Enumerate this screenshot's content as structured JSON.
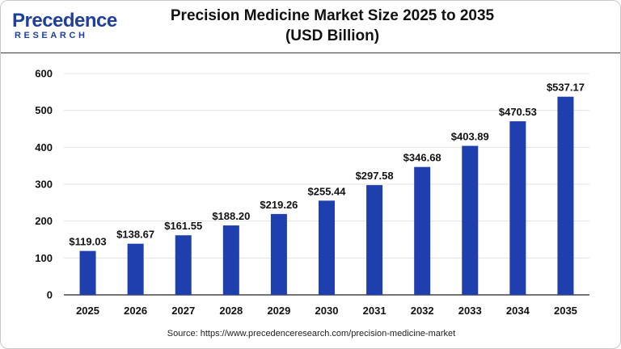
{
  "brand": {
    "name": "Precedence",
    "sub": "RESEARCH"
  },
  "header": {
    "title_line1": "Precision Medicine Market Size 2025 to 2035",
    "title_line2": "(USD Billion)"
  },
  "source": "Source: https://www.precedenceresearch.com/precision-medicine-market",
  "colors": {
    "bar": "#1f3fae",
    "grid": "#e2e2e2",
    "axis": "#222222",
    "brand": "#1f3f9a"
  },
  "chart_data": {
    "type": "bar",
    "title": "Precision Medicine Market Size 2025 to 2035 (USD Billion)",
    "xlabel": "",
    "ylabel": "",
    "categories": [
      "2025",
      "2026",
      "2027",
      "2028",
      "2029",
      "2030",
      "2031",
      "2032",
      "2033",
      "2034",
      "2035"
    ],
    "values": [
      119.03,
      138.67,
      161.55,
      188.2,
      219.26,
      255.44,
      297.58,
      346.68,
      403.89,
      470.53,
      537.17
    ],
    "value_labels": [
      "$119.03",
      "$138.67",
      "$161.55",
      "$188.20",
      "$219.26",
      "$255.44",
      "$297.58",
      "$346.68",
      "$403.89",
      "$470.53",
      "$537.17"
    ],
    "ylim": [
      0,
      600
    ],
    "yticks": [
      0,
      100,
      200,
      300,
      400,
      500,
      600
    ],
    "grid": true,
    "legend": "none"
  }
}
